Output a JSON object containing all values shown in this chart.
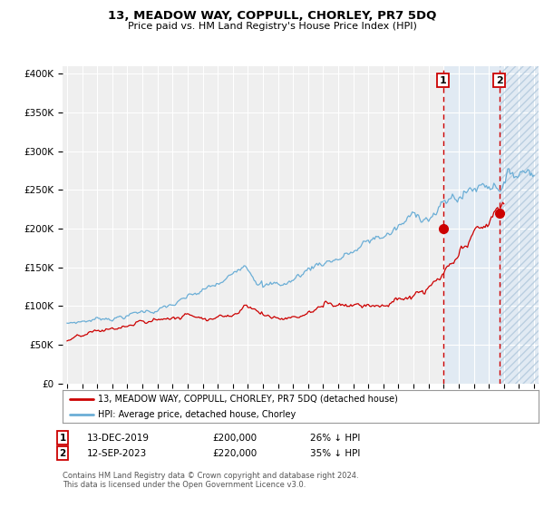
{
  "title": "13, MEADOW WAY, COPPULL, CHORLEY, PR7 5DQ",
  "subtitle": "Price paid vs. HM Land Registry's House Price Index (HPI)",
  "legend_line1": "13, MEADOW WAY, COPPULL, CHORLEY, PR7 5DQ (detached house)",
  "legend_line2": "HPI: Average price, detached house, Chorley",
  "annotation1_label": "1",
  "annotation1_date": "13-DEC-2019",
  "annotation1_price": "£200,000",
  "annotation1_pct": "26% ↓ HPI",
  "annotation2_label": "2",
  "annotation2_date": "12-SEP-2023",
  "annotation2_price": "£220,000",
  "annotation2_pct": "35% ↓ HPI",
  "footer1": "Contains HM Land Registry data © Crown copyright and database right 2024.",
  "footer2": "This data is licensed under the Open Government Licence v3.0.",
  "hpi_color": "#6baed6",
  "price_color": "#cc0000",
  "sale1_date_year": 2019.95,
  "sale1_price": 200000,
  "sale2_date_year": 2023.7,
  "sale2_price": 220000,
  "ylim": [
    0,
    410000
  ],
  "xlim_start": 1994.7,
  "xlim_end": 2026.3,
  "background_color": "#ffffff",
  "plot_bg_color": "#efefef",
  "shade_color": "#dce9f5",
  "grid_color": "#ffffff",
  "hatch_color": "#b0c8dc"
}
